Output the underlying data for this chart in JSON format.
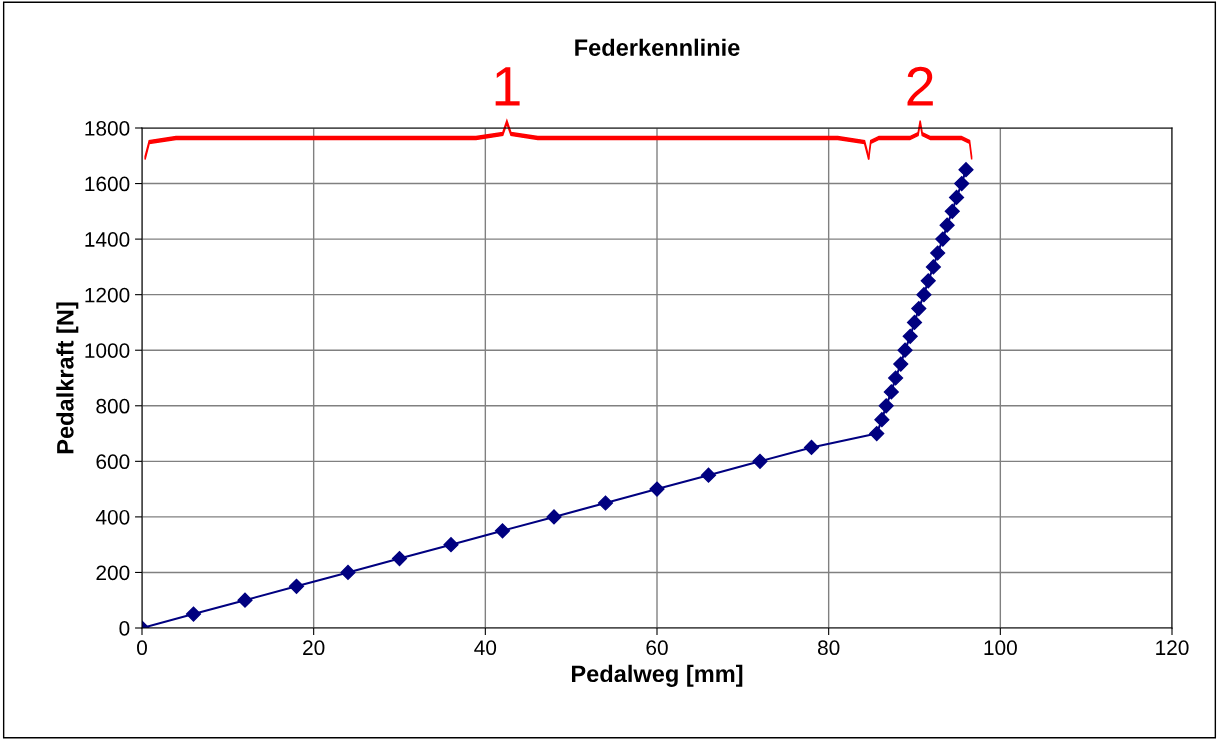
{
  "chart_data": {
    "type": "line",
    "title": "Federkennlinie",
    "xlabel": "Pedalweg [mm]",
    "ylabel": "Pedalkraft [N]",
    "annotations": [
      "1",
      "2"
    ],
    "series": [
      {
        "color": "#000080",
        "x": [
          0,
          6,
          12,
          18,
          24,
          30,
          36,
          42,
          48,
          54,
          60,
          66,
          72,
          78,
          85.6,
          86.2,
          86.7,
          87.3,
          87.8,
          88.4,
          88.9,
          89.5,
          90.0,
          90.5,
          91.1,
          91.6,
          92.2,
          92.7,
          93.3,
          93.8,
          94.4,
          94.9,
          95.5,
          96.0
        ],
        "values": [
          0,
          50,
          100,
          150,
          200,
          250,
          300,
          350,
          400,
          450,
          500,
          550,
          600,
          650,
          700,
          750,
          800,
          850,
          900,
          950,
          1000,
          1050,
          1100,
          1150,
          1200,
          1250,
          1300,
          1350,
          1400,
          1450,
          1500,
          1550,
          1600,
          1650
        ]
      }
    ],
    "xlim": [
      0,
      120
    ],
    "xticks": [
      0,
      20,
      40,
      60,
      80,
      100,
      120
    ],
    "ylim": [
      0,
      1800
    ],
    "yticks": [
      0,
      200,
      400,
      600,
      800,
      1000,
      1200,
      1400,
      1600,
      1800
    ],
    "grid": true,
    "marker": "diamond",
    "line_style": "solid"
  }
}
